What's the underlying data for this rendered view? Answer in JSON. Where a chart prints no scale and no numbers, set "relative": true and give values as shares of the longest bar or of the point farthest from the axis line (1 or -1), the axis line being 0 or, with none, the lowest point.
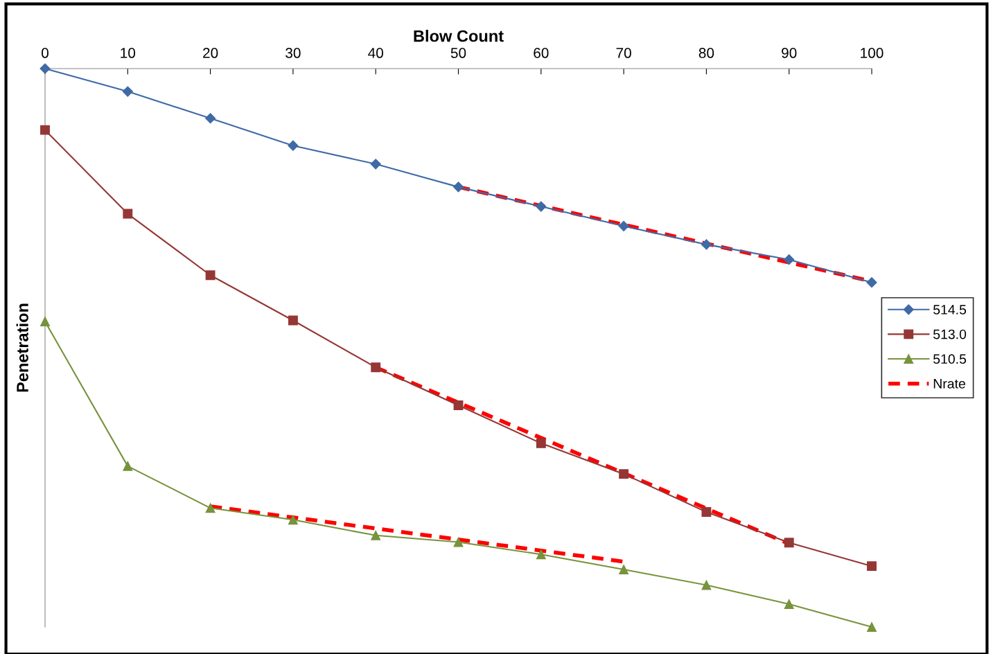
{
  "chart_data": {
    "type": "line",
    "xlabel": "Blow Count",
    "ylabel": "Penetration",
    "relative": true,
    "x": [
      0,
      10,
      20,
      30,
      40,
      50,
      60,
      70,
      80,
      90,
      100
    ],
    "xlim": [
      0,
      100
    ],
    "xticks": [
      0,
      10,
      20,
      30,
      40,
      50,
      60,
      70,
      80,
      90,
      100
    ],
    "grid": false,
    "legend": "right",
    "line_style": "solid",
    "series": [
      {
        "name": "514.5",
        "color": "#3f6aa6",
        "marker": "diamond",
        "values": [
          0,
          -0.041,
          -0.089,
          -0.138,
          -0.171,
          -0.212,
          -0.247,
          -0.282,
          -0.315,
          -0.342,
          -0.383
        ]
      },
      {
        "name": "513.0",
        "color": "#953735",
        "marker": "square",
        "values": [
          -0.11,
          -0.26,
          -0.37,
          -0.451,
          -0.535,
          -0.603,
          -0.671,
          -0.726,
          -0.794,
          -0.849,
          -0.891
        ]
      },
      {
        "name": "510.5",
        "color": "#77933c",
        "marker": "triangle",
        "values": [
          -0.453,
          -0.712,
          -0.787,
          -0.808,
          -0.836,
          -0.848,
          -0.87,
          -0.897,
          -0.925,
          -0.959,
          -1
        ]
      },
      {
        "name": "Nrate",
        "color": "#ff0000",
        "marker": "none",
        "line_style": "dashed",
        "x": [
          50,
          100
        ],
        "values": [
          -0.212,
          -0.381
        ]
      },
      {
        "color": "#ff0000",
        "marker": "none",
        "line_style": "dashed",
        "x": [
          40,
          90
        ],
        "values": [
          -0.535,
          -0.851
        ]
      },
      {
        "color": "#ff0000",
        "marker": "none",
        "line_style": "dashed",
        "x": [
          20,
          70
        ],
        "values": [
          -0.784,
          -0.883
        ]
      }
    ]
  }
}
